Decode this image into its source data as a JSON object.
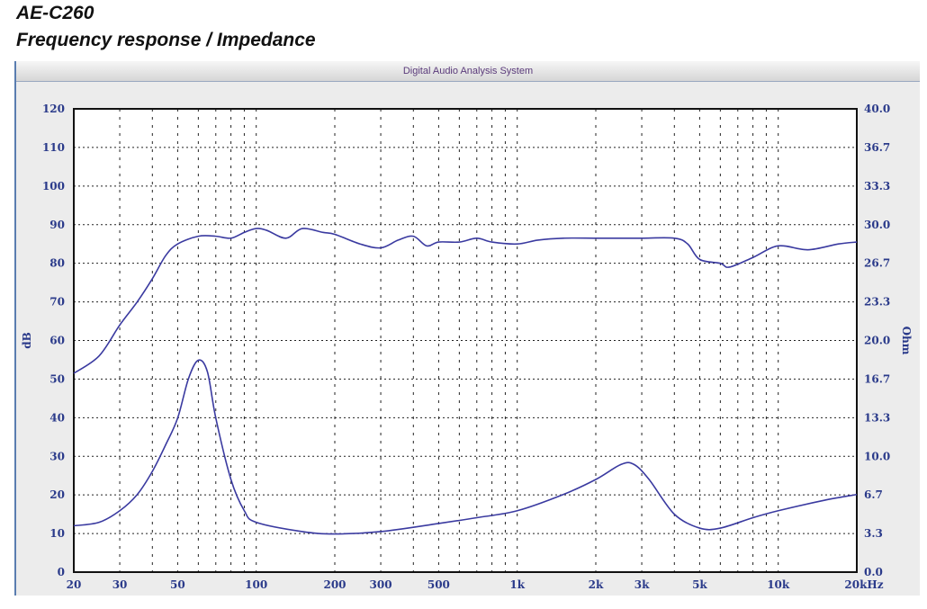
{
  "title": "AE-C260",
  "subtitle": "Frequency response / Impedance",
  "window_title": "Digital Audio Analysis System",
  "chart_data": {
    "type": "line",
    "title": "Frequency response / Impedance",
    "xlabel": "Hz",
    "ylabel": "dB",
    "y2label": "Ohm",
    "xscale": "log",
    "xlim": [
      20,
      20000
    ],
    "ylim": [
      0,
      120
    ],
    "y2lim": [
      0,
      40
    ],
    "grid": true,
    "x_ticks": [
      20,
      30,
      50,
      100,
      200,
      300,
      500,
      1000,
      2000,
      3000,
      5000,
      10000,
      20000
    ],
    "x_tick_labels": [
      "20",
      "30",
      "50",
      "100",
      "200",
      "300",
      "500",
      "1k",
      "2k",
      "3k",
      "5k",
      "10k",
      "20kHz"
    ],
    "y_tick_labels": [
      "0",
      "10",
      "20",
      "30",
      "40",
      "50",
      "60",
      "70",
      "80",
      "90",
      "100",
      "110",
      "120"
    ],
    "y2_tick_labels": [
      "0.0",
      "3.3",
      "6.7",
      "10.0",
      "13.3",
      "16.7",
      "20.0",
      "23.3",
      "26.7",
      "30.0",
      "33.3",
      "36.7",
      "40.0"
    ],
    "line_color": "#3a3aa0",
    "series": [
      {
        "name": "Frequency response (dB)",
        "axis": "left",
        "x": [
          20,
          25,
          30,
          35,
          40,
          45,
          50,
          60,
          70,
          80,
          90,
          100,
          110,
          130,
          150,
          180,
          200,
          250,
          300,
          350,
          400,
          450,
          500,
          600,
          700,
          800,
          1000,
          1200,
          1500,
          2000,
          2500,
          3000,
          4000,
          4500,
          5000,
          6000,
          6500,
          8000,
          10000,
          13000,
          17000,
          20000
        ],
        "y": [
          51.5,
          56,
          64,
          70,
          76,
          82,
          85,
          87,
          87,
          86.5,
          88,
          89,
          88.5,
          86.5,
          89,
          88,
          87.5,
          85,
          84,
          86,
          87,
          84.5,
          85.5,
          85.5,
          86.5,
          85.5,
          85,
          86,
          86.5,
          86.5,
          86.5,
          86.5,
          86.5,
          85,
          81,
          80,
          79,
          81.5,
          84.5,
          83.5,
          85,
          85.5
        ]
      },
      {
        "name": "Impedance (Ohm)",
        "axis": "right",
        "x": [
          20,
          25,
          30,
          35,
          40,
          45,
          50,
          55,
          60,
          65,
          70,
          80,
          90,
          100,
          150,
          200,
          300,
          500,
          700,
          1000,
          1500,
          2000,
          2500,
          2800,
          3200,
          4000,
          5000,
          6000,
          8000,
          10000,
          15000,
          20000
        ],
        "y": [
          4.0,
          4.3,
          5.3,
          6.7,
          8.7,
          11.0,
          13.3,
          16.7,
          18.3,
          17.3,
          13.3,
          8.0,
          5.3,
          4.3,
          3.5,
          3.3,
          3.5,
          4.2,
          4.7,
          5.3,
          6.7,
          8.0,
          9.3,
          9.3,
          8.0,
          5.0,
          3.8,
          3.8,
          4.7,
          5.3,
          6.2,
          6.7
        ]
      }
    ]
  }
}
